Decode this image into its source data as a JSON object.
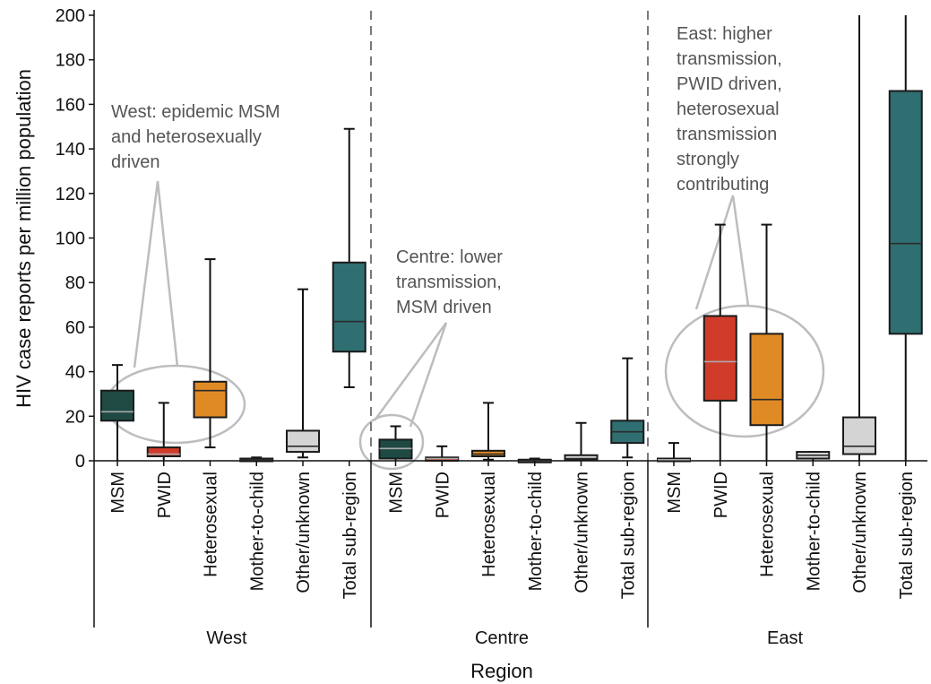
{
  "chart_data": {
    "type": "box",
    "ylabel": "HIV case reports per million population",
    "xlabel": "Region",
    "ylim": [
      0,
      200
    ],
    "yticks": [
      0,
      20,
      40,
      60,
      80,
      100,
      120,
      140,
      160,
      180,
      200
    ],
    "categories": [
      "MSM",
      "PWID",
      "Heterosexual",
      "Mother-to-child",
      "Other/unknown",
      "Total sub-region"
    ],
    "category_colors": [
      "#1f4a44",
      "#d13b2a",
      "#e08a25",
      "#d9d9d9",
      "#d4d4d4",
      "#2f6e71"
    ],
    "median_colors": [
      "#a9a9a9",
      "#a9a9a9",
      "#2b2b2b",
      "#2b2b2b",
      "#2b2b2b",
      "#2b2b2b"
    ],
    "groups": [
      {
        "name": "West",
        "boxes": [
          {
            "category": "MSM",
            "whisker_low": 0,
            "q1": 18,
            "median": 22,
            "q3": 31.5,
            "whisker_high": 43
          },
          {
            "category": "PWID",
            "whisker_low": 0,
            "q1": 2,
            "median": 3,
            "q3": 6,
            "whisker_high": 26
          },
          {
            "category": "Heterosexual",
            "whisker_low": 6,
            "q1": 19.5,
            "median": 31.5,
            "q3": 35.5,
            "whisker_high": 90.5
          },
          {
            "category": "Mother-to-child",
            "whisker_low": 0,
            "q1": 0,
            "median": 0.5,
            "q3": 1,
            "whisker_high": 1.5
          },
          {
            "category": "Other/unknown",
            "whisker_low": 1.5,
            "q1": 4,
            "median": 6.5,
            "q3": 13.5,
            "whisker_high": 77
          },
          {
            "category": "Total sub-region",
            "whisker_low": 33,
            "q1": 49,
            "median": 62.5,
            "q3": 89,
            "whisker_high": 149
          }
        ]
      },
      {
        "name": "Centre",
        "boxes": [
          {
            "category": "MSM",
            "whisker_low": 0,
            "q1": 1,
            "median": 5.5,
            "q3": 9.5,
            "whisker_high": 15.5
          },
          {
            "category": "PWID",
            "whisker_low": 0,
            "q1": 0,
            "median": 1,
            "q3": 1.5,
            "whisker_high": 6.5
          },
          {
            "category": "Heterosexual",
            "whisker_low": 0.5,
            "q1": 2,
            "median": 3,
            "q3": 4.5,
            "whisker_high": 26
          },
          {
            "category": "Mother-to-child",
            "whisker_low": 0,
            "q1": 0,
            "median": 0,
            "q3": 0.5,
            "whisker_high": 1
          },
          {
            "category": "Other/unknown",
            "whisker_low": 0,
            "q1": 0.5,
            "median": 1,
            "q3": 2.5,
            "whisker_high": 17
          },
          {
            "category": "Total sub-region",
            "whisker_low": 1.5,
            "q1": 8,
            "median": 13,
            "q3": 18,
            "whisker_high": 46
          }
        ]
      },
      {
        "name": "East",
        "boxes": [
          {
            "category": "MSM",
            "whisker_low": 0,
            "q1": 0,
            "median": 0.5,
            "q3": 1,
            "whisker_high": 8
          },
          {
            "category": "PWID",
            "whisker_low": 0,
            "q1": 27,
            "median": 44.5,
            "q3": 65,
            "whisker_high": 106
          },
          {
            "category": "Heterosexual",
            "whisker_low": 0,
            "q1": 16,
            "median": 27.5,
            "q3": 57,
            "whisker_high": 106
          },
          {
            "category": "Mother-to-child",
            "whisker_low": 0,
            "q1": 1,
            "median": 2.5,
            "q3": 4,
            "whisker_high": 4
          },
          {
            "category": "Other/unknown",
            "whisker_low": 0,
            "q1": 3,
            "median": 6.5,
            "q3": 19.5,
            "whisker_high": 200
          },
          {
            "category": "Total sub-region",
            "whisker_low": 0,
            "q1": 57,
            "median": 97.5,
            "q3": 166,
            "whisker_high": 200
          }
        ]
      }
    ],
    "annotations": [
      {
        "group": "West",
        "lines": [
          "West: epidemic MSM",
          "and heterosexually",
          "driven"
        ]
      },
      {
        "group": "Centre",
        "lines": [
          "Centre: lower",
          "transmission,",
          "MSM driven"
        ]
      },
      {
        "group": "East",
        "lines": [
          "East: higher",
          "transmission,",
          "PWID driven,",
          "heterosexual",
          "transmission",
          "strongly",
          "contributing"
        ]
      }
    ],
    "grid": false,
    "legend": "none",
    "group_separator": "dashed"
  }
}
